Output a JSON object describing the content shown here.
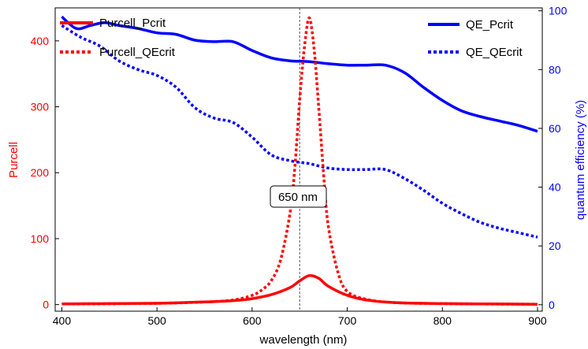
{
  "chart_data": {
    "type": "line",
    "xlabel": "wavelength (nm)",
    "ylabel_left": "Purcell",
    "ylabel_right": "quantum efficiency (%)",
    "xlim": [
      393,
      905
    ],
    "ylim_left": [
      -10,
      450
    ],
    "ylim_right": [
      -2.2,
      101
    ],
    "x_ticks": [
      400,
      500,
      600,
      700,
      800,
      900
    ],
    "y_left_ticks": [
      0,
      100,
      200,
      300,
      400
    ],
    "y_right_ticks": [
      0,
      20,
      40,
      60,
      80,
      100
    ],
    "colors": {
      "red": "#ff0000",
      "blue": "#0000ff",
      "marker": "#555555"
    },
    "annotation": {
      "text": "650 nm",
      "x": 650
    },
    "legend_left": [
      "Purcell_Pcrit",
      "Purcell_QEcrit"
    ],
    "legend_right": [
      "QE_Pcrit",
      "QE_QEcrit"
    ],
    "series": [
      {
        "name": "Purcell_Pcrit",
        "axis": "left",
        "style": "solid",
        "x": [
          400,
          450,
          500,
          550,
          580,
          600,
          620,
          640,
          650,
          660,
          670,
          680,
          700,
          720,
          750,
          800,
          850,
          900
        ],
        "y": [
          1,
          1.5,
          2,
          4,
          6,
          9,
          15,
          26,
          36,
          44,
          40,
          28,
          14,
          7,
          3,
          1.5,
          1,
          0.5
        ]
      },
      {
        "name": "Purcell_QEcrit",
        "axis": "left",
        "style": "dotted",
        "x": [
          400,
          500,
          550,
          580,
          600,
          610,
          620,
          630,
          640,
          645,
          650,
          655,
          660,
          665,
          670,
          675,
          680,
          690,
          700,
          720,
          750,
          800,
          900
        ],
        "y": [
          1,
          2,
          4,
          7,
          14,
          22,
          36,
          68,
          140,
          210,
          310,
          390,
          435,
          390,
          300,
          200,
          120,
          50,
          20,
          8,
          3,
          1.5,
          0.5
        ]
      },
      {
        "name": "QE_Pcrit",
        "axis": "right",
        "style": "solid",
        "x": [
          400,
          415,
          430,
          445,
          460,
          480,
          500,
          520,
          540,
          560,
          580,
          600,
          620,
          640,
          660,
          680,
          700,
          720,
          740,
          760,
          780,
          800,
          820,
          840,
          860,
          880,
          900
        ],
        "y": [
          98,
          94,
          95,
          96,
          95,
          94,
          92.5,
          92,
          90,
          89.5,
          89.5,
          86.5,
          84,
          83,
          82.7,
          82,
          81.5,
          81.5,
          81.5,
          79,
          74,
          69.5,
          66,
          64,
          62.5,
          61,
          59
        ]
      },
      {
        "name": "QE_QEcrit",
        "axis": "right",
        "style": "dotted",
        "x": [
          400,
          420,
          440,
          460,
          480,
          500,
          520,
          540,
          560,
          580,
          600,
          620,
          640,
          660,
          680,
          700,
          720,
          740,
          760,
          780,
          800,
          820,
          840,
          860,
          880,
          900
        ],
        "y": [
          95,
          91,
          88,
          83,
          80,
          78,
          74,
          67,
          63.5,
          62,
          57,
          51,
          49,
          48,
          46.5,
          46,
          46,
          46,
          43,
          39,
          34.5,
          31,
          28,
          26,
          24.5,
          23
        ]
      }
    ]
  }
}
